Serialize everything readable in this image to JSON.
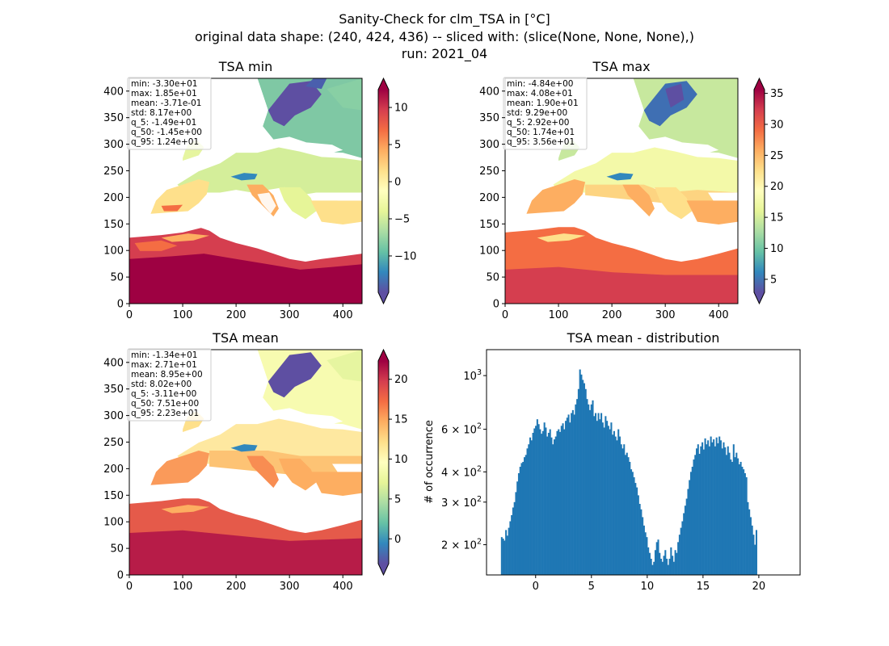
{
  "suptitle": [
    "Sanity-Check for clm_TSA in [°C]",
    "original data shape: (240, 424, 436) -- sliced with: (slice(None, None, None),)",
    "run: 2021_04"
  ],
  "colors": {
    "histogram_bar": "#1f77b4",
    "water": "#ffffff",
    "colormap": "Spectral_r"
  },
  "chart_data": [
    {
      "type": "heatmap",
      "title": "TSA min",
      "x_ticks": [
        "0",
        "100",
        "200",
        "300",
        "400"
      ],
      "y_ticks": [
        "0",
        "50",
        "100",
        "150",
        "200",
        "250",
        "300",
        "350",
        "400"
      ],
      "xlim": [
        0,
        436
      ],
      "ylim": [
        0,
        424
      ],
      "colorbar_ticks": [
        "−10",
        "−5",
        "0",
        "5",
        "10"
      ],
      "colorbar_range": [
        -14.9,
        12.4
      ],
      "colormap": "Spectral_r",
      "stats": [
        "min: -3.30e+01",
        "max: 1.85e+01",
        "mean: -3.71e-01",
        "std: 8.17e+00",
        "q_5: -1.49e+01",
        "q_50: -1.45e+00",
        "q_95: 1.24e+01"
      ]
    },
    {
      "type": "heatmap",
      "title": "TSA max",
      "x_ticks": [
        "0",
        "100",
        "200",
        "300",
        "400"
      ],
      "y_ticks": [
        "0",
        "50",
        "100",
        "150",
        "200",
        "250",
        "300",
        "350",
        "400"
      ],
      "xlim": [
        0,
        436
      ],
      "ylim": [
        0,
        424
      ],
      "colorbar_ticks": [
        "5",
        "10",
        "15",
        "20",
        "25",
        "30",
        "35"
      ],
      "colorbar_range": [
        2.9,
        35.6
      ],
      "colormap": "Spectral_r",
      "stats": [
        "min: -4.84e+00",
        "max: 4.08e+01",
        "mean: 1.90e+01",
        "std: 9.29e+00",
        "q_5: 2.92e+00",
        "q_50: 1.74e+01",
        "q_95: 3.56e+01"
      ]
    },
    {
      "type": "heatmap",
      "title": "TSA mean",
      "x_ticks": [
        "0",
        "100",
        "200",
        "300",
        "400"
      ],
      "y_ticks": [
        "0",
        "50",
        "100",
        "150",
        "200",
        "250",
        "300",
        "350",
        "400"
      ],
      "xlim": [
        0,
        436
      ],
      "ylim": [
        0,
        424
      ],
      "colorbar_ticks": [
        "0",
        "5",
        "10",
        "15",
        "20"
      ],
      "colorbar_range": [
        -3.11,
        22.3
      ],
      "colormap": "Spectral_r",
      "stats": [
        "min: -1.34e+01",
        "max: 2.71e+01",
        "mean: 8.95e+00",
        "std: 8.02e+00",
        "q_5: -3.11e+00",
        "q_50: 7.51e+00",
        "q_95: 2.23e+01"
      ]
    },
    {
      "type": "bar",
      "title": "TSA mean - distribution",
      "ylabel": "# of occurrence",
      "yscale": "log",
      "xlim": [
        -4.4,
        23.7
      ],
      "ylim": [
        150,
        1280
      ],
      "x_ticks": [
        0,
        5,
        10,
        15,
        20
      ],
      "y_ticks": [
        {
          "value": 200,
          "base": "2",
          "exp": "2",
          "times": true
        },
        {
          "value": 300,
          "base": "3",
          "exp": "2",
          "times": true
        },
        {
          "value": 400,
          "base": "4",
          "exp": "2",
          "times": true
        },
        {
          "value": 600,
          "base": "6",
          "exp": "2",
          "times": true
        },
        {
          "value": 1000,
          "base": "10",
          "exp": "3",
          "times": false
        }
      ],
      "bin_start": -3.11,
      "bin_width": 0.1275,
      "counts": [
        215,
        212,
        208,
        230,
        218,
        235,
        250,
        265,
        285,
        300,
        330,
        365,
        395,
        420,
        435,
        440,
        460,
        470,
        500,
        520,
        555,
        540,
        580,
        605,
        620,
        660,
        630,
        600,
        575,
        590,
        640,
        610,
        560,
        580,
        600,
        555,
        520,
        545,
        560,
        590,
        600,
        585,
        620,
        635,
        600,
        650,
        670,
        690,
        640,
        700,
        720,
        690,
        760,
        800,
        880,
        1060,
        1010,
        960,
        930,
        880,
        800,
        760,
        720,
        760,
        790,
        680,
        700,
        650,
        700,
        660,
        700,
        640,
        610,
        680,
        650,
        620,
        600,
        640,
        570,
        590,
        560,
        540,
        600,
        560,
        520,
        500,
        520,
        470,
        480,
        460,
        440,
        410,
        400,
        380,
        360,
        345,
        320,
        295,
        280,
        260,
        240,
        225,
        215,
        195,
        185,
        175,
        165,
        170,
        190,
        205,
        210,
        185,
        175,
        170,
        180,
        190,
        175,
        165,
        175,
        195,
        180,
        170,
        190,
        185,
        205,
        220,
        235,
        250,
        270,
        290,
        310,
        340,
        370,
        400,
        420,
        450,
        470,
        500,
        520,
        475,
        510,
        530,
        495,
        550,
        520,
        540,
        510,
        560,
        530,
        545,
        510,
        555,
        525,
        560,
        540,
        500,
        530,
        505,
        470,
        510,
        480,
        450,
        440,
        520,
        460,
        480,
        455,
        430,
        440,
        420,
        410,
        395,
        380,
        300,
        280,
        260,
        240,
        220,
        200,
        230
      ]
    }
  ]
}
